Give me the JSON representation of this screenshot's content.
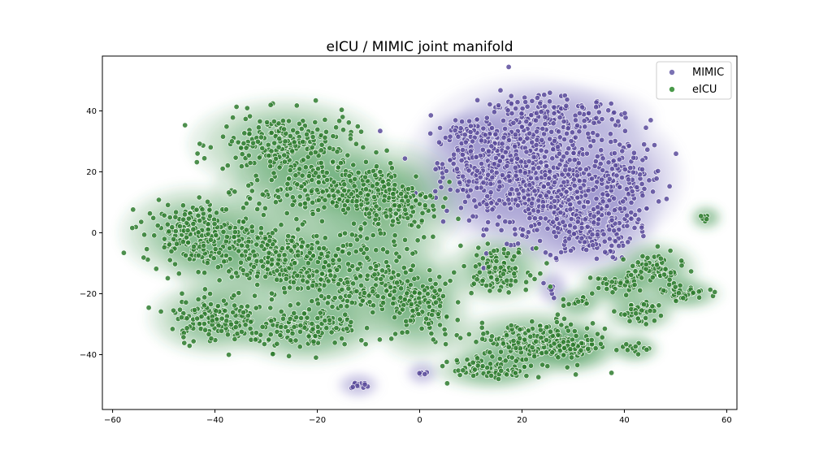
{
  "chart_data": {
    "type": "scatter",
    "title": "eICU / MIMIC joint manifold",
    "xlabel": "",
    "ylabel": "",
    "xlim": [
      -62,
      62
    ],
    "ylim": [
      -58,
      58
    ],
    "x_ticks": [
      -60,
      -40,
      -20,
      0,
      20,
      40,
      60
    ],
    "y_ticks": [
      -40,
      -20,
      0,
      20,
      40
    ],
    "grid": false,
    "legend_position": "top-right",
    "legend": [
      {
        "name": "MIMIC",
        "color": "#7b72b3"
      },
      {
        "name": "eICU",
        "color": "#4a9a4a"
      }
    ],
    "series": [
      {
        "name": "MIMIC",
        "color": "#5b4b9b",
        "density_color": "#8c84c4",
        "clusters": [
          {
            "cx": 21,
            "cy": 22,
            "rx": 15,
            "ry": 18,
            "n": 420
          },
          {
            "cx": 28,
            "cy": 10,
            "rx": 12,
            "ry": 12,
            "n": 260
          },
          {
            "cx": 33,
            "cy": 0,
            "rx": 8,
            "ry": 8,
            "n": 120
          },
          {
            "cx": 13,
            "cy": 20,
            "rx": 8,
            "ry": 12,
            "n": 140
          },
          {
            "cx": 40,
            "cy": 18,
            "rx": 7,
            "ry": 12,
            "n": 120
          },
          {
            "cx": 27,
            "cy": 38,
            "rx": 12,
            "ry": 6,
            "n": 130
          },
          {
            "cx": 10,
            "cy": 32,
            "rx": 5,
            "ry": 4,
            "n": 40
          },
          {
            "cx": -12,
            "cy": -50,
            "rx": 2,
            "ry": 1.2,
            "n": 12
          },
          {
            "cx": 0.5,
            "cy": -46,
            "rx": 1.2,
            "ry": 1,
            "n": 6
          },
          {
            "cx": 26,
            "cy": -18,
            "rx": 1.2,
            "ry": 2.5,
            "n": 6
          }
        ]
      },
      {
        "name": "eICU",
        "color": "#2f7d2f",
        "density_color": "#2e8b3e",
        "clusters": [
          {
            "cx": -26,
            "cy": 29,
            "rx": 12,
            "ry": 9,
            "n": 220
          },
          {
            "cx": -20,
            "cy": 14,
            "rx": 13,
            "ry": 8,
            "n": 200
          },
          {
            "cx": -6,
            "cy": 10,
            "rx": 9,
            "ry": 12,
            "n": 200
          },
          {
            "cx": -44,
            "cy": 0,
            "rx": 9,
            "ry": 9,
            "n": 200
          },
          {
            "cx": -30,
            "cy": -8,
            "rx": 12,
            "ry": 10,
            "n": 240
          },
          {
            "cx": -12,
            "cy": -15,
            "rx": 12,
            "ry": 12,
            "n": 240
          },
          {
            "cx": -40,
            "cy": -28,
            "rx": 8,
            "ry": 7,
            "n": 150
          },
          {
            "cx": -22,
            "cy": -32,
            "rx": 9,
            "ry": 6,
            "n": 130
          },
          {
            "cx": 0,
            "cy": -25,
            "rx": 6,
            "ry": 10,
            "n": 120
          },
          {
            "cx": 15,
            "cy": -12,
            "rx": 6,
            "ry": 6,
            "n": 110
          },
          {
            "cx": 22,
            "cy": -36,
            "rx": 11,
            "ry": 6,
            "n": 200
          },
          {
            "cx": 14,
            "cy": -45,
            "rx": 7,
            "ry": 3,
            "n": 70
          },
          {
            "cx": 30,
            "cy": -38,
            "rx": 5,
            "ry": 4,
            "n": 60
          },
          {
            "cx": 46,
            "cy": -12,
            "rx": 5,
            "ry": 5,
            "n": 70
          },
          {
            "cx": 38,
            "cy": -17,
            "rx": 4,
            "ry": 3,
            "n": 40
          },
          {
            "cx": 43,
            "cy": -26,
            "rx": 4,
            "ry": 3,
            "n": 40
          },
          {
            "cx": 52,
            "cy": -20,
            "rx": 4,
            "ry": 2,
            "n": 35
          },
          {
            "cx": 31,
            "cy": -23,
            "rx": 2.5,
            "ry": 1.5,
            "n": 15
          },
          {
            "cx": 42,
            "cy": -38,
            "rx": 2.5,
            "ry": 1.5,
            "n": 12
          },
          {
            "cx": 56,
            "cy": 5,
            "rx": 1.2,
            "ry": 1,
            "n": 6
          }
        ]
      }
    ]
  }
}
